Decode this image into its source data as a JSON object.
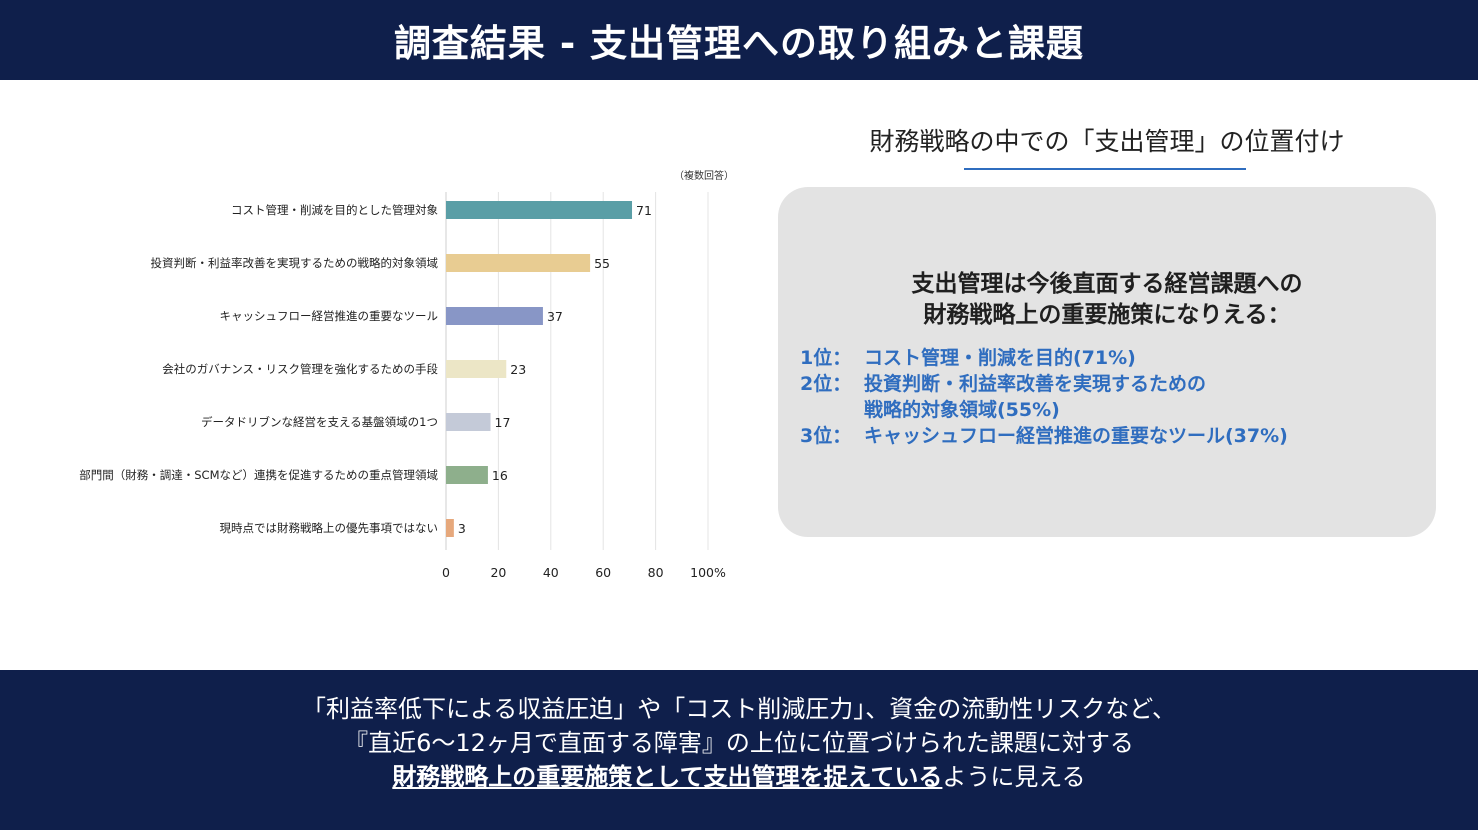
{
  "header": {
    "title": "調査結果 - 支出管理への取り組みと課題"
  },
  "chart_data": {
    "type": "bar",
    "orientation": "horizontal",
    "note": "（複数回答）",
    "categories": [
      "コスト管理・削減を目的とした管理対象",
      "投資判断・利益率改善を実現するための戦略的対象領域",
      "キャッシュフロー経営推進の重要なツール",
      "会社のガバナンス・リスク管理を強化するための手段",
      "データドリブンな経営を支える基盤領域の1つ",
      "部門間（財務・調達・SCMなど）連携を促進するための重点管理領域",
      "現時点では財務戦略上の優先事項ではない"
    ],
    "values": [
      71,
      55,
      37,
      23,
      17,
      16,
      3
    ],
    "value_labels": [
      "71",
      "55",
      "37",
      "23",
      "17",
      "16",
      "3"
    ],
    "bar_colors": [
      "#5a9ea6",
      "#e8cc92",
      "#8896c6",
      "#ece6c6",
      "#c4cad8",
      "#8eaf8c",
      "#e6a87c"
    ],
    "xlim": [
      0,
      100
    ],
    "x_ticks": [
      {
        "value": 0,
        "label": "0"
      },
      {
        "value": 20,
        "label": "20"
      },
      {
        "value": 40,
        "label": "40"
      },
      {
        "value": 60,
        "label": "60"
      },
      {
        "value": 80,
        "label": "80"
      },
      {
        "value": 100,
        "label": "100%"
      }
    ],
    "grid": true
  },
  "right_panel": {
    "title": "財務戦略の中での「支出管理」の位置付け",
    "heading_line1": "支出管理は今後直面する経営課題への",
    "heading_line2": "財務戦略上の重要施策になりえる：",
    "ranks": [
      {
        "no": "1位：",
        "text": "コスト管理・削減を目的(71%)"
      },
      {
        "no": "2位：",
        "text": "投資判断・利益率改善を実現するための"
      },
      {
        "no": "",
        "text": "戦略的対象領域(55%)"
      },
      {
        "no": "3位：",
        "text": "キャッシュフロー経営推進の重要なツール(37%)"
      }
    ]
  },
  "footer": {
    "line1": "「利益率低下による収益圧迫」や「コスト削減圧力」、資金の流動性リスクなど、",
    "line2": "『直近6〜12ヶ月で直面する障害』の上位に位置づけられた課題に対する",
    "line3_bold": "財務戦略上の重要施策として支出管理を捉えている",
    "line3_rest": "ように見える"
  },
  "colors": {
    "banner_bg": "#0f1f4b",
    "accent_blue": "#2f6dbf",
    "panel_bg": "#e3e3e3"
  }
}
